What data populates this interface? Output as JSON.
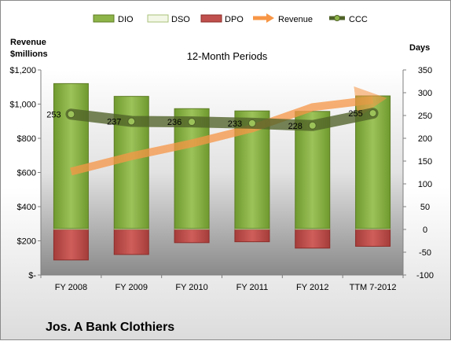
{
  "chart_data": {
    "type": "bar",
    "subtitle": "12-Month Periods",
    "company": "Jos. A Bank Clothiers",
    "left_axis": {
      "title_lines": [
        "Revenue",
        "$millions"
      ],
      "ticks": [
        "$-",
        "$200",
        "$400",
        "$600",
        "$800",
        "$1,000",
        "$1,200"
      ],
      "range": [
        0,
        1200
      ]
    },
    "right_axis": {
      "title": "Days",
      "ticks": [
        "-100",
        "-50",
        "0",
        "50",
        "100",
        "150",
        "200",
        "250",
        "300",
        "350"
      ],
      "range": [
        -100,
        350
      ]
    },
    "categories": [
      "FY 2008",
      "FY 2009",
      "FY 2010",
      "FY 2011",
      "FY 2012",
      "TTM 7-2012"
    ],
    "legend": [
      "DIO",
      "DSO",
      "DPO",
      "Revenue",
      "CCC"
    ],
    "series": [
      {
        "name": "DIO",
        "axis": "right",
        "values": [
          318,
          290,
          263,
          258,
          257,
          291
        ]
      },
      {
        "name": "DSO",
        "axis": "right",
        "values": [
          2,
          2,
          2,
          2,
          2,
          2
        ]
      },
      {
        "name": "DPO",
        "axis": "right",
        "values": [
          -67,
          -55,
          -29,
          -27,
          -41,
          -37
        ]
      },
      {
        "name": "Revenue",
        "axis": "left",
        "values": [
          605,
          695,
          770,
          858,
          982,
          1025
        ]
      },
      {
        "name": "CCC",
        "axis": "right",
        "values": [
          253,
          237,
          236,
          233,
          228,
          255
        ]
      }
    ],
    "ccc_labels": [
      "253",
      "237",
      "236",
      "233",
      "228",
      "255"
    ],
    "colors": {
      "DIO": "#8db448",
      "DIO_dark": "#5f7d26",
      "DSO": "#f2f7e6",
      "DPO": "#c0504d",
      "DPO_dark": "#8c2d2a",
      "Revenue": "#f79646",
      "CCC": "#4f6228",
      "plot_bg": "#8c8c8c"
    }
  }
}
